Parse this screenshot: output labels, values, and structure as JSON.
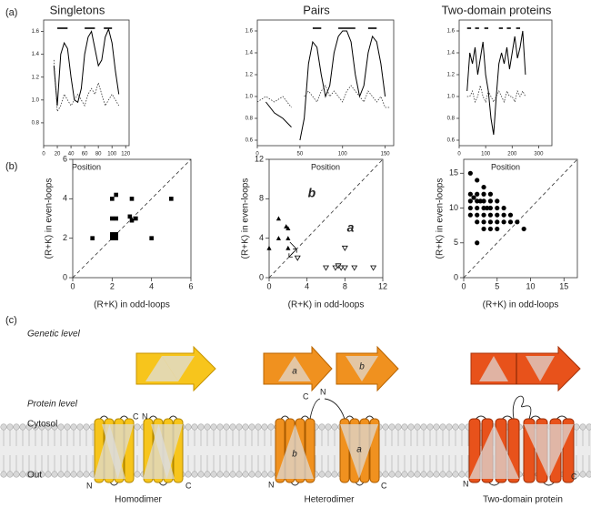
{
  "panels": [
    "(a)",
    "(b)",
    "(c)"
  ],
  "chart_data": [
    {
      "type": "line",
      "title": "Singletons",
      "x_label": "Position",
      "xlim": [
        0,
        125
      ],
      "xticks": [
        0,
        20,
        40,
        60,
        80,
        100,
        120
      ],
      "ylim": [
        0.6,
        1.7
      ],
      "yticks": [
        0.8,
        {
          "value": 1,
          "label": "1.0"
        },
        1.2,
        1.4,
        1.6
      ],
      "segments": [
        [
          20,
          35
        ],
        [
          60,
          75
        ],
        [
          88,
          100
        ]
      ],
      "x": [
        15,
        20,
        25,
        30,
        35,
        40,
        45,
        50,
        55,
        60,
        65,
        70,
        75,
        80,
        85,
        90,
        95,
        100,
        105,
        110
      ],
      "series": [
        {
          "style": "solid",
          "color": "#000000",
          "values": [
            1.3,
            0.95,
            1.4,
            1.5,
            1.45,
            1.2,
            1.0,
            0.98,
            1.1,
            1.4,
            1.55,
            1.6,
            1.45,
            1.3,
            1.35,
            1.55,
            1.62,
            1.5,
            1.25,
            1.05
          ]
        },
        {
          "style": "dotted",
          "color": "#333333",
          "values": [
            1.35,
            0.9,
            0.95,
            1.05,
            1.0,
            0.95,
            1.0,
            1.05,
            1.0,
            0.95,
            1.05,
            1.1,
            1.05,
            1.15,
            1.05,
            0.95,
            1.0,
            1.05,
            1.0,
            0.95
          ]
        }
      ]
    },
    {
      "type": "line",
      "title": "Pairs",
      "x_label": "Position",
      "xlim": [
        0,
        160
      ],
      "xticks": [
        0,
        50,
        100,
        150
      ],
      "ylim": [
        0.55,
        1.7
      ],
      "yticks": [
        0.6,
        0.8,
        {
          "value": 1,
          "label": "1.0"
        },
        1.2,
        1.4,
        1.6
      ],
      "segments": [
        [
          65,
          75
        ],
        [
          95,
          115
        ],
        [
          130,
          140
        ]
      ],
      "x": [
        0,
        10,
        20,
        30,
        40,
        45,
        50,
        55,
        60,
        65,
        70,
        75,
        80,
        85,
        90,
        95,
        100,
        105,
        110,
        115,
        120,
        125,
        130,
        135,
        140,
        145,
        150,
        155
      ],
      "series": [
        {
          "style": "solid",
          "color": "#000000",
          "values": [
            null,
            0.95,
            0.85,
            0.8,
            0.72,
            null,
            0.6,
            0.8,
            1.3,
            1.5,
            1.45,
            1.2,
            1.0,
            1.1,
            1.4,
            1.55,
            1.6,
            1.6,
            1.5,
            1.2,
            1.0,
            1.1,
            1.4,
            1.55,
            1.5,
            1.3,
            1.0,
            null
          ]
        },
        {
          "style": "dotted",
          "color": "#333333",
          "values": [
            0.95,
            1.0,
            0.95,
            1.0,
            0.9,
            null,
            null,
            1.0,
            1.05,
            1.0,
            0.95,
            1.05,
            1.1,
            1.0,
            1.05,
            1.0,
            0.95,
            1.05,
            1.1,
            1.05,
            1.0,
            0.95,
            1.05,
            1.0,
            0.95,
            1.0,
            0.9,
            0.9
          ]
        }
      ]
    },
    {
      "type": "line",
      "title": "Two-domain proteins",
      "x_label": "Position",
      "xlim": [
        0,
        350
      ],
      "xticks": [
        0,
        100,
        200,
        300
      ],
      "ylim": [
        0.55,
        1.7
      ],
      "yticks": [
        0.6,
        0.8,
        {
          "value": 1,
          "label": "1.0"
        },
        1.2,
        1.4,
        1.6
      ],
      "segments": [
        [
          30,
          45
        ],
        [
          60,
          75
        ],
        [
          95,
          110
        ],
        [
          150,
          165
        ],
        [
          180,
          195
        ],
        [
          215,
          230
        ]
      ],
      "x": [
        30,
        40,
        50,
        60,
        70,
        80,
        90,
        100,
        110,
        120,
        130,
        140,
        150,
        160,
        170,
        180,
        190,
        200,
        210,
        220,
        230,
        240,
        250
      ],
      "series": [
        {
          "style": "solid",
          "color": "#000000",
          "values": [
            1.05,
            1.4,
            1.3,
            1.45,
            1.2,
            1.35,
            1.5,
            1.2,
            1.05,
            0.8,
            0.65,
            1.0,
            1.3,
            1.4,
            1.3,
            1.45,
            1.25,
            1.4,
            1.55,
            1.35,
            1.45,
            1.6,
            1.2
          ]
        },
        {
          "style": "dotted",
          "color": "#333333",
          "values": [
            1.0,
            1.0,
            1.05,
            0.95,
            1.0,
            1.1,
            1.0,
            0.95,
            1.05,
            1.0,
            0.95,
            1.0,
            1.05,
            1.0,
            0.95,
            1.05,
            1.0,
            1.0,
            0.95,
            1.05,
            1.0,
            1.05,
            1.0
          ]
        }
      ]
    },
    {
      "type": "scatter",
      "x_label": "(R+K) in odd-loops",
      "y_label": "(R+K) in even-loops",
      "diagonal": true,
      "xlim": [
        0,
        6
      ],
      "xticks": [
        0,
        2,
        4,
        6
      ],
      "ylim": [
        0,
        6
      ],
      "yticks": [
        0,
        2,
        4,
        6
      ],
      "series": [
        {
          "marker": "square",
          "color": "#000000",
          "x": [
            1,
            2,
            2.2,
            2,
            2.2,
            2,
            2.2,
            2,
            2.2,
            3,
            3.2,
            2.9,
            3,
            4,
            5
          ],
          "values": [
            2,
            2,
            2,
            2.2,
            2.2,
            3,
            3,
            4,
            4.2,
            4,
            3,
            3.1,
            2.9,
            2,
            4
          ]
        }
      ]
    },
    {
      "type": "scatter",
      "x_label": "(R+K) in odd-loops",
      "y_label": "(R+K) in even-loops",
      "diagonal": true,
      "xlim": [
        0,
        12
      ],
      "xticks": [
        0,
        4,
        8,
        12
      ],
      "ylim": [
        0,
        12
      ],
      "yticks": [
        0,
        4,
        8,
        12
      ],
      "annotations": [
        "b",
        "a"
      ],
      "series": [
        {
          "marker": "triangle",
          "color": "#000000",
          "x": [
            0,
            1,
            1,
            2,
            2,
            2,
            1.8
          ],
          "values": [
            3,
            6,
            4,
            4,
            3,
            5,
            5.2
          ]
        },
        {
          "marker": "triangle-open-down",
          "color": "#000000",
          "x": [
            3,
            6,
            7,
            7.3,
            7.6,
            8,
            8,
            9,
            11
          ],
          "values": [
            2,
            1,
            1,
            1.2,
            1,
            1,
            3,
            1,
            1
          ]
        }
      ]
    },
    {
      "type": "scatter",
      "x_label": "(R+K) in odd-loops",
      "y_label": "(R+K) in even-loops",
      "diagonal": true,
      "xlim": [
        0,
        17
      ],
      "xticks": [
        0,
        5,
        10,
        15
      ],
      "ylim": [
        0,
        17
      ],
      "yticks": [
        0,
        5,
        10,
        15
      ],
      "series": [
        {
          "marker": "circle",
          "color": "#000000",
          "x": [
            1,
            1,
            1,
            1,
            2,
            2,
            2,
            2,
            2,
            2,
            2.5,
            3,
            3,
            3,
            3,
            3,
            3,
            3,
            3.5,
            4,
            4,
            4,
            4,
            4,
            4,
            5,
            5,
            5,
            5,
            5,
            6,
            6,
            6,
            7,
            7,
            8,
            9,
            1.5,
            2,
            1
          ],
          "values": [
            15,
            12,
            11,
            10,
            14,
            12,
            11,
            10,
            9,
            8,
            11,
            13,
            12,
            11,
            10,
            9,
            8,
            7,
            10,
            12,
            11,
            10,
            9,
            8,
            7,
            11,
            10,
            9,
            8,
            7,
            10,
            9,
            8,
            9,
            8,
            8,
            7,
            11.5,
            5,
            9
          ]
        }
      ]
    }
  ],
  "diagram": {
    "genetic_level": "Genetic level",
    "protein_level": "Protein level",
    "cytosol": "Cytosol",
    "out": "Out",
    "genes": [
      "a",
      "b"
    ],
    "homodimer": {
      "caption": "Homodimer",
      "termini": [
        "C",
        "N",
        "N",
        "C"
      ]
    },
    "heterodimer": {
      "caption": "Heterodimer",
      "subunits": [
        "b",
        "a"
      ],
      "termini": [
        "C",
        "N",
        "N",
        "C"
      ]
    },
    "two_domain": {
      "caption": "Two-domain protein",
      "termini": [
        "N",
        "C"
      ]
    }
  }
}
